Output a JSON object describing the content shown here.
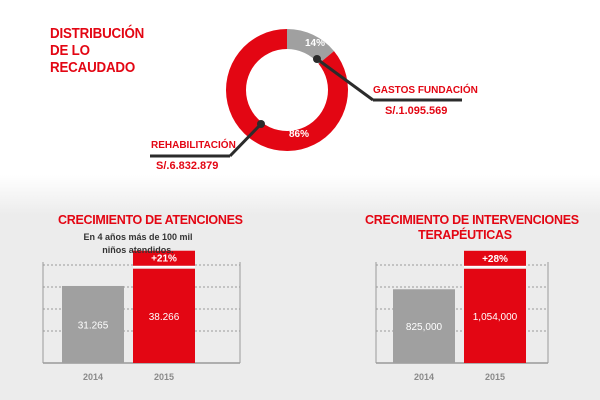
{
  "header": {
    "title": "DISTRIBUCIÓN\nDE LO\nRECAUDADO"
  },
  "colors": {
    "accent": "#e30613",
    "gray": "#a0a0a0",
    "dark": "#2b2b2b"
  },
  "donut": {
    "pct_gray": "14%",
    "pct_red": "86%",
    "label_gastos": "GASTOS FUNDACIÓN",
    "value_gastos": "S/.1.095.569",
    "label_rehab": "REHABILITACIÓN",
    "value_rehab": "S/.6.832.879"
  },
  "chart_data": [
    {
      "type": "donut",
      "categories": [
        "Gastos Fundación",
        "Rehabilitación"
      ],
      "values": [
        14,
        86
      ],
      "amounts": [
        "S/.1.095.569",
        "S/.6.832.879"
      ],
      "title": "DISTRIBUCIÓN DE LO RECAUDADO"
    },
    {
      "type": "bar",
      "title": "CRECIMIENTO DE ATENCIONES",
      "subtitle_line1": "En 4 años más de 100 mil",
      "subtitle_line2": "niños atendidos.",
      "categories": [
        "2014",
        "2015"
      ],
      "values": [
        31265,
        38266
      ],
      "value_labels": [
        "31.265",
        "38.266"
      ],
      "growth_label": "+21%",
      "ylim": [
        0,
        41000
      ]
    },
    {
      "type": "bar",
      "title_line1": "CRECIMIENTO DE INTERVENCIONES",
      "title_line2": "TERAPÉUTICAS",
      "categories": [
        "2014",
        "2015"
      ],
      "values": [
        825000,
        1054000
      ],
      "value_labels": [
        "825,000",
        "1,054,000"
      ],
      "growth_label": "+28%",
      "ylim": [
        0,
        1130000
      ]
    }
  ]
}
